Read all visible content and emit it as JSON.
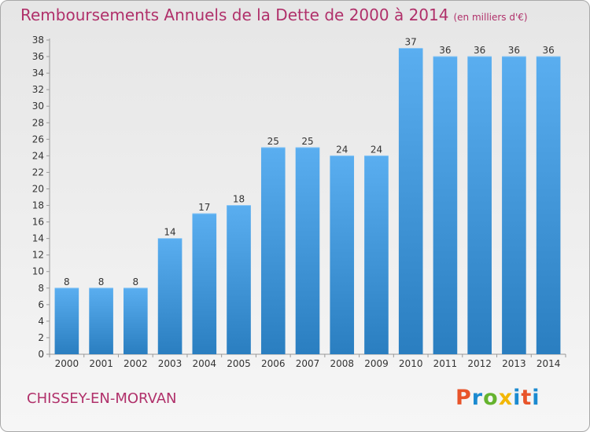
{
  "chart_data": {
    "type": "bar",
    "title": "Remboursements Annuels de la Dette de 2000 à 2014",
    "unit_label": "(en milliers d'€)",
    "categories": [
      "2000",
      "2001",
      "2002",
      "2003",
      "2004",
      "2005",
      "2006",
      "2007",
      "2008",
      "2009",
      "2010",
      "2011",
      "2012",
      "2013",
      "2014"
    ],
    "values": [
      8,
      8,
      8,
      14,
      17,
      18,
      25,
      25,
      24,
      24,
      37,
      36,
      36,
      36,
      36
    ],
    "ylim": [
      0,
      38
    ],
    "yticks": [
      0,
      2,
      4,
      6,
      8,
      10,
      12,
      14,
      16,
      18,
      20,
      22,
      24,
      26,
      28,
      30,
      32,
      34,
      36,
      38
    ],
    "grid": false,
    "bar_color_top": "#5aaef0",
    "bar_color_bottom": "#2a7ec0"
  },
  "footer": {
    "commune": "CHISSEY-EN-MORVAN",
    "logo_letters": [
      "P",
      "r",
      "o",
      "x",
      "i",
      "t",
      "i"
    ]
  }
}
